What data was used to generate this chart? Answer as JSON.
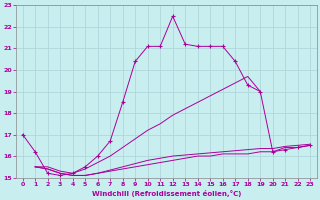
{
  "xlabel": "Windchill (Refroidissement éolien,°C)",
  "bg_color": "#c8eef0",
  "grid_color": "#b0d8da",
  "line_color": "#aa0099",
  "xlim": [
    -0.5,
    23.5
  ],
  "ylim": [
    15,
    23
  ],
  "xticks": [
    0,
    1,
    2,
    3,
    4,
    5,
    6,
    7,
    8,
    9,
    10,
    11,
    12,
    13,
    14,
    15,
    16,
    17,
    18,
    19,
    20,
    21,
    22,
    23
  ],
  "yticks": [
    15,
    16,
    17,
    18,
    19,
    20,
    21,
    22,
    23
  ],
  "line1_x": [
    0,
    1,
    2,
    3,
    4,
    5,
    6,
    7,
    8,
    9,
    10,
    11,
    12,
    13,
    14,
    15,
    16,
    17,
    18,
    19,
    20,
    21,
    22,
    23
  ],
  "line1_y": [
    17.0,
    16.2,
    15.2,
    15.1,
    15.2,
    15.5,
    16.0,
    16.7,
    18.5,
    20.4,
    21.1,
    21.1,
    22.5,
    21.2,
    21.1,
    21.1,
    21.1,
    20.4,
    19.3,
    19.0,
    16.2,
    16.3,
    16.4,
    16.5
  ],
  "line2_x": [
    1,
    2,
    3,
    4,
    5,
    6,
    7,
    8,
    9,
    10,
    11,
    12,
    13,
    14,
    15,
    16,
    17,
    18,
    19
  ],
  "line2_y": [
    15.5,
    15.5,
    15.3,
    15.2,
    15.4,
    15.7,
    16.0,
    16.4,
    16.8,
    17.2,
    17.5,
    17.9,
    18.2,
    18.5,
    18.8,
    19.1,
    19.4,
    19.7,
    19.0
  ],
  "line3_x": [
    1,
    2,
    3,
    4,
    5,
    6,
    7,
    8,
    9,
    10,
    11,
    12,
    13,
    14,
    15,
    16,
    17,
    18,
    19,
    20,
    21,
    22,
    23
  ],
  "line3_y": [
    15.5,
    15.4,
    15.2,
    15.1,
    15.1,
    15.2,
    15.3,
    15.4,
    15.5,
    15.6,
    15.7,
    15.8,
    15.9,
    16.0,
    16.0,
    16.1,
    16.1,
    16.1,
    16.2,
    16.2,
    16.4,
    16.4,
    16.5
  ],
  "line4_x": [
    1,
    2,
    3,
    4,
    5,
    6,
    7,
    8,
    9,
    10,
    11,
    12,
    13,
    14,
    15,
    16,
    17,
    18,
    19,
    20,
    21,
    22,
    23
  ],
  "line4_y": [
    15.5,
    15.4,
    15.2,
    15.1,
    15.1,
    15.2,
    15.35,
    15.5,
    15.65,
    15.8,
    15.9,
    16.0,
    16.05,
    16.1,
    16.15,
    16.2,
    16.25,
    16.3,
    16.35,
    16.35,
    16.45,
    16.5,
    16.55
  ]
}
